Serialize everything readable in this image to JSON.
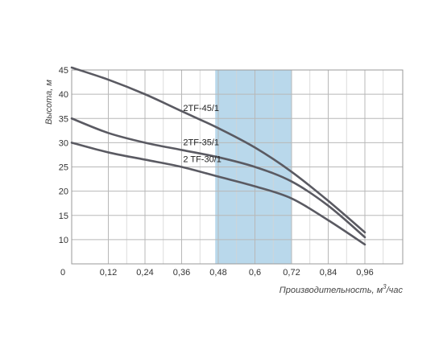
{
  "chart_data": {
    "type": "line",
    "xlabel": "Производительность, м³/час",
    "ylabel": "Высота, м",
    "xlim": [
      0,
      1.08
    ],
    "ylim": [
      5,
      45
    ],
    "x_ticks": [
      {
        "value": 0,
        "label": "0"
      },
      {
        "value": 0.12,
        "label": "0,12"
      },
      {
        "value": 0.24,
        "label": "0,24"
      },
      {
        "value": 0.36,
        "label": "0,36"
      },
      {
        "value": 0.48,
        "label": "0,48"
      },
      {
        "value": 0.6,
        "label": "0,6"
      },
      {
        "value": 0.72,
        "label": "0,72"
      },
      {
        "value": 0.84,
        "label": "0,84"
      },
      {
        "value": 0.96,
        "label": "0,96"
      }
    ],
    "y_ticks": [
      {
        "value": 10,
        "label": "10"
      },
      {
        "value": 15,
        "label": "15"
      },
      {
        "value": 20,
        "label": "20"
      },
      {
        "value": 25,
        "label": "25"
      },
      {
        "value": 30,
        "label": "30"
      },
      {
        "value": 35,
        "label": "35"
      },
      {
        "value": 40,
        "label": "40"
      },
      {
        "value": 45,
        "label": "45"
      }
    ],
    "grid": true,
    "highlight_band": {
      "x_from": 0.47,
      "x_to": 0.72,
      "color": "#b9d8eb"
    },
    "line_color": "#5a5a62",
    "series": [
      {
        "name": "2TF-45/1",
        "x": [
          0,
          0.12,
          0.24,
          0.36,
          0.48,
          0.6,
          0.72,
          0.84,
          0.96
        ],
        "values": [
          45.5,
          43,
          40,
          36.5,
          33,
          29,
          24,
          18,
          11.5
        ]
      },
      {
        "name": "2TF-35/1",
        "x": [
          0,
          0.12,
          0.24,
          0.36,
          0.48,
          0.6,
          0.72,
          0.84,
          0.96
        ],
        "values": [
          35,
          32,
          30,
          28.5,
          27,
          25,
          22,
          17,
          10.5
        ]
      },
      {
        "name": "2 TF-30/1",
        "x": [
          0,
          0.12,
          0.24,
          0.36,
          0.48,
          0.6,
          0.72,
          0.84,
          0.96
        ],
        "values": [
          30,
          28,
          26.5,
          25,
          23,
          21,
          18.5,
          14,
          9
        ]
      }
    ]
  }
}
